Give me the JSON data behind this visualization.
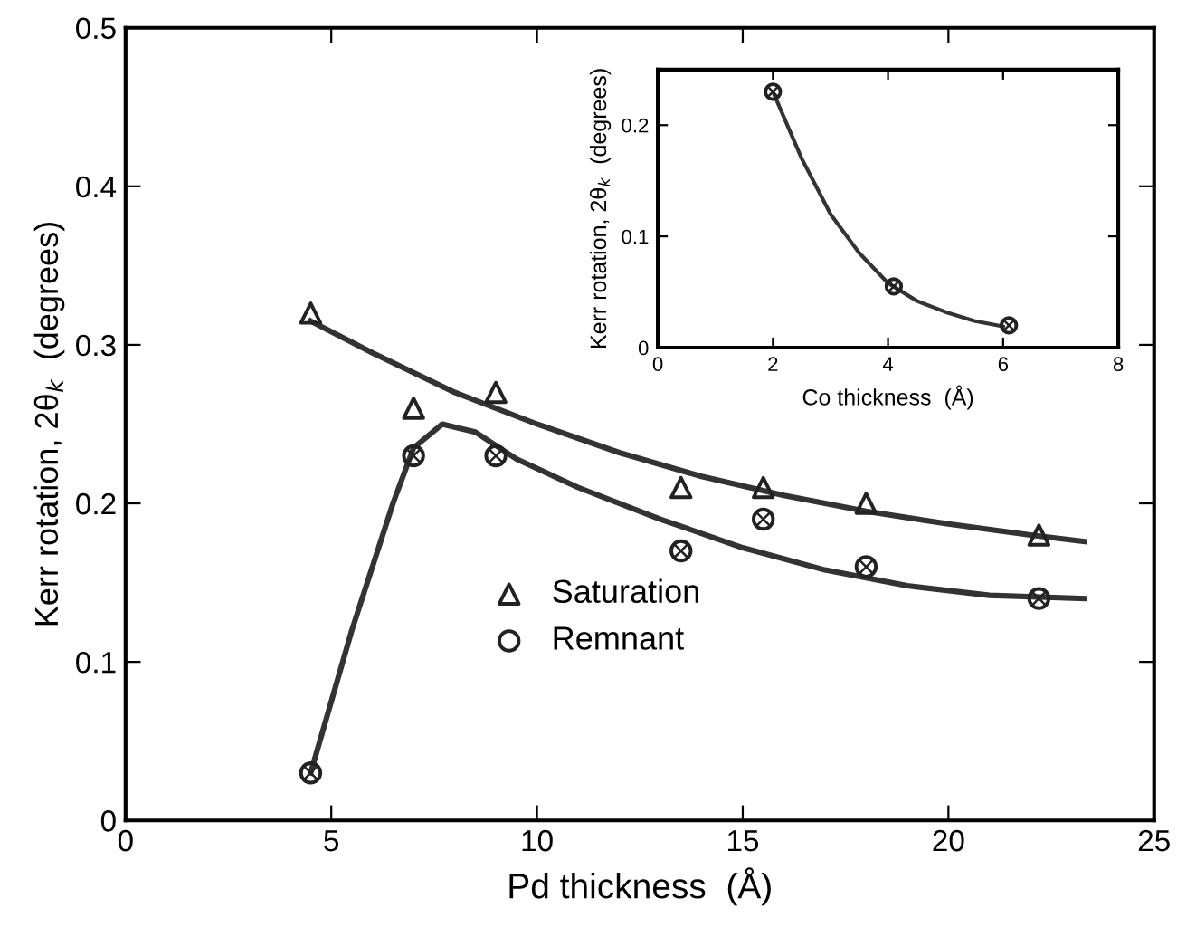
{
  "chart_data": [
    {
      "type": "scatter",
      "xlabel": "Pd thickness  (Å)",
      "ylabel": "Kerr rotation, 2θ$_{k}$  (degrees)",
      "xlim": [
        0,
        25
      ],
      "ylim": [
        0,
        0.5
      ],
      "xticks": [
        0,
        5,
        10,
        15,
        20,
        25
      ],
      "yticks": [
        0,
        0.1,
        0.2,
        0.3,
        0.4,
        0.5
      ],
      "grid": false,
      "legend": "bottom",
      "series": [
        {
          "name": "Saturation",
          "color": "#222222",
          "marker": "triangle",
          "x": [
            4.5,
            7,
            9,
            13.5,
            15.5,
            18,
            22.2
          ],
          "values": [
            0.32,
            0.26,
            0.27,
            0.21,
            0.21,
            0.2,
            0.18
          ]
        },
        {
          "name": "Remnant",
          "color": "#222222",
          "marker": "circle",
          "x": [
            4.5,
            7,
            9,
            13.5,
            15.5,
            18,
            22.2
          ],
          "values": [
            0.03,
            0.23,
            0.23,
            0.17,
            0.19,
            0.16,
            0.14
          ]
        },
        {
          "type": "line",
          "color": "#333333",
          "marker": "none",
          "line_style": "solid",
          "x": [
            4.5,
            6,
            8,
            10,
            12,
            14,
            16,
            18,
            20,
            22,
            23.3
          ],
          "values": [
            0.315,
            0.295,
            0.27,
            0.25,
            0.232,
            0.217,
            0.205,
            0.195,
            0.187,
            0.18,
            0.176
          ]
        },
        {
          "type": "line",
          "color": "#333333",
          "marker": "none",
          "line_style": "solid",
          "x": [
            4.5,
            5.5,
            6.5,
            7,
            7.7,
            8.5,
            9.5,
            11,
            13,
            15,
            17,
            19,
            21,
            23.3
          ],
          "values": [
            0.03,
            0.12,
            0.2,
            0.235,
            0.25,
            0.245,
            0.228,
            0.21,
            0.19,
            0.172,
            0.158,
            0.148,
            0.142,
            0.14
          ]
        }
      ]
    },
    {
      "type": "scatter",
      "xlabel": "Co thickness  (Å)",
      "ylabel": "Kerr rotation, 2θ$_{k}$  (degrees)",
      "xlim": [
        0,
        8
      ],
      "ylim": [
        0,
        0.25
      ],
      "xticks": [
        0,
        2,
        4,
        6,
        8
      ],
      "yticks": [
        0,
        0.1,
        0.2
      ],
      "grid": false,
      "series": [
        {
          "color": "#222222",
          "marker": "circle",
          "x": [
            2,
            4.1,
            6.1
          ],
          "values": [
            0.23,
            0.055,
            0.02
          ]
        },
        {
          "type": "line",
          "color": "#333333",
          "marker": "none",
          "line_style": "solid",
          "x": [
            2,
            2.5,
            3,
            3.5,
            4,
            4.5,
            5,
            5.5,
            6
          ],
          "values": [
            0.23,
            0.17,
            0.12,
            0.085,
            0.058,
            0.042,
            0.032,
            0.024,
            0.019
          ]
        }
      ]
    }
  ]
}
